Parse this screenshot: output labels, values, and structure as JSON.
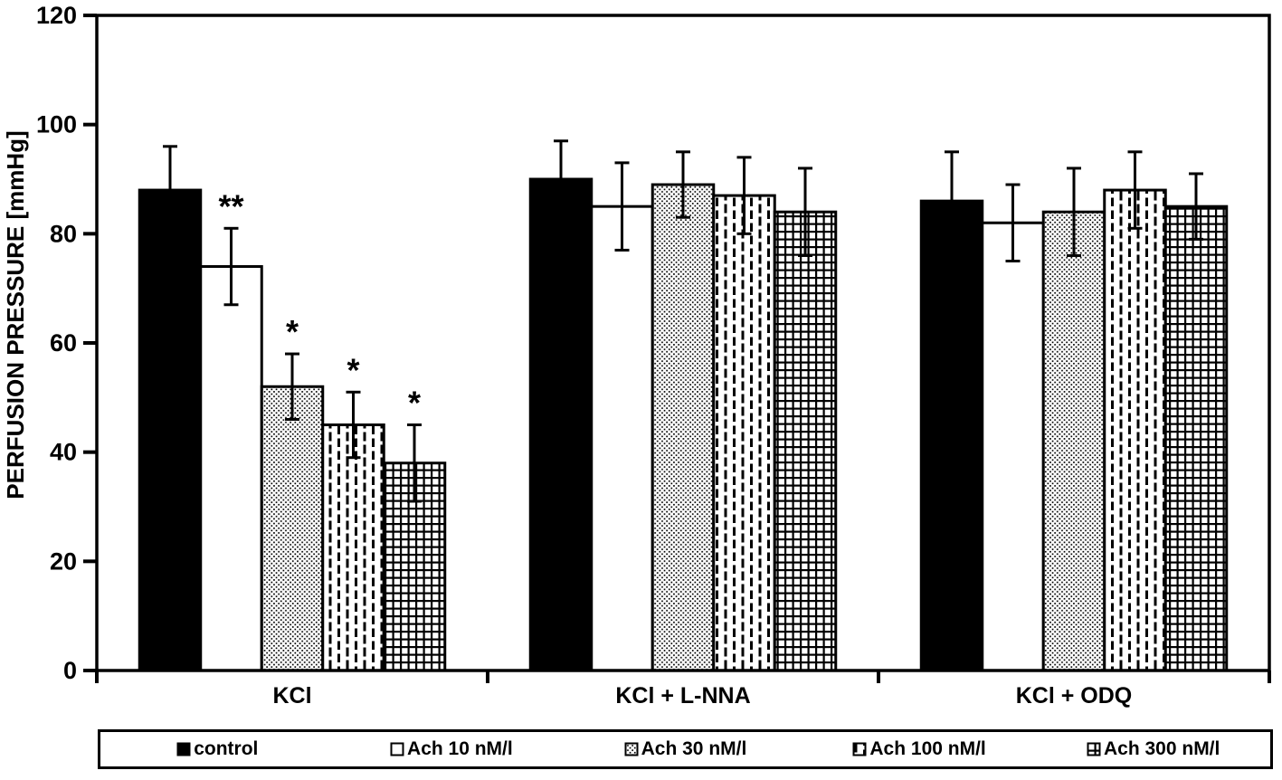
{
  "chart_data": {
    "type": "bar",
    "title": "",
    "xlabel": "",
    "ylabel": "PERFUSION PRESSURE [mmHg]",
    "ylim": [
      0,
      120
    ],
    "yticks": [
      0,
      20,
      40,
      60,
      80,
      100,
      120
    ],
    "grid": false,
    "legend_position": "bottom",
    "error_bars": true,
    "colors": {
      "foreground": "#000000",
      "background": "#ffffff"
    },
    "categories": [
      "KCl",
      "KCl + L-NNA",
      "KCl + ODQ"
    ],
    "series": [
      {
        "name": "control",
        "fill": "solid-black",
        "values": [
          88,
          90,
          86
        ],
        "errors": [
          8,
          7,
          9
        ]
      },
      {
        "name": "Ach 10 nM/l",
        "fill": "white",
        "values": [
          74,
          85,
          82
        ],
        "errors": [
          7,
          8,
          7
        ]
      },
      {
        "name": "Ach 30 nM/l",
        "fill": "dots",
        "values": [
          52,
          89,
          84
        ],
        "errors": [
          6,
          6,
          8
        ]
      },
      {
        "name": "Ach 100 nM/l",
        "fill": "vertical-dashes",
        "values": [
          45,
          87,
          88
        ],
        "errors": [
          6,
          7,
          7
        ]
      },
      {
        "name": "Ach 300 nM/l",
        "fill": "grid",
        "values": [
          38,
          84,
          85
        ],
        "errors": [
          7,
          8,
          6
        ]
      }
    ],
    "annotations": [
      {
        "category": "KCl",
        "series": "Ach 10 nM/l",
        "text": "**"
      },
      {
        "category": "KCl",
        "series": "Ach 30 nM/l",
        "text": "*"
      },
      {
        "category": "KCl",
        "series": "Ach 100 nM/l",
        "text": "*"
      },
      {
        "category": "KCl",
        "series": "Ach 300 nM/l",
        "text": "*"
      }
    ]
  }
}
